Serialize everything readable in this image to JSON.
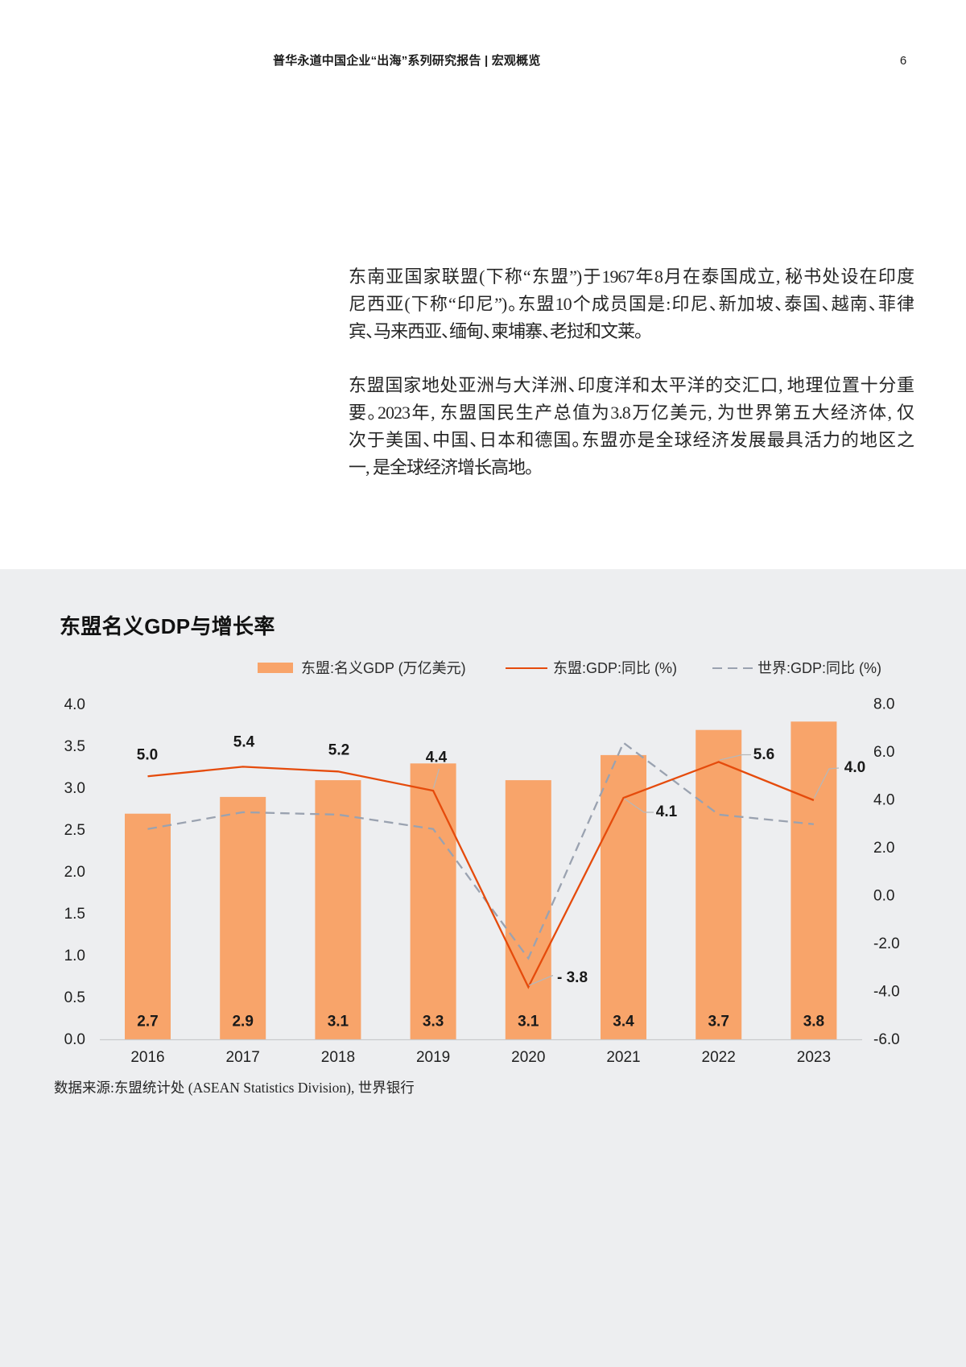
{
  "header": {
    "title": "普华永道中国企业“出海”系列研究报告  |  宏观概览",
    "page_number": "6"
  },
  "body": {
    "paragraphs": [
      {
        "lines": [
          "东南亚国家联盟(下称“东盟”)于1967年8月在泰国成立, 秘书处设在印度",
          "尼西亚(下称“印尼”)。东盟10个成员国是:印尼、新加坡、泰国、越南、菲律",
          "宾、马来西亚、缅甸、柬埔寨、老挝和文莱。"
        ]
      },
      {
        "lines": [
          "东盟国家地处亚洲与大洋洲、印度洋和太平洋的交汇口, 地理位置十分重",
          "要。2023年, 东盟国民生产总值为3.8万亿美元, 为世界第五大经济体, 仅",
          "次于美国、中国、日本和德国。东盟亦是全球经济发展最具活力的地区之",
          "一, 是全球经济增长高地。"
        ]
      }
    ]
  },
  "chart_data": {
    "type": "bar+line",
    "title": "东盟名义GDP与增长率",
    "categories": [
      "2016",
      "2017",
      "2018",
      "2019",
      "2020",
      "2021",
      "2022",
      "2023"
    ],
    "series": [
      {
        "name": "东盟:名义GDP (万亿美元)",
        "type": "bar",
        "axis": "left",
        "color": "#f8a46a",
        "values": [
          2.7,
          2.9,
          3.1,
          3.3,
          3.1,
          3.4,
          3.7,
          3.8
        ],
        "labels": [
          "2.7",
          "2.9",
          "3.1",
          "3.3",
          "3.1",
          "3.4",
          "3.7",
          "3.8"
        ]
      },
      {
        "name": "东盟:GDP:同比 (%)",
        "type": "line",
        "axis": "right",
        "color": "#e54b0c",
        "values": [
          5.0,
          5.4,
          5.2,
          4.4,
          -3.8,
          4.1,
          5.6,
          4.0
        ],
        "labels": [
          "5.0",
          "5.4",
          "5.2",
          "4.4",
          "- 3.8",
          "4.1",
          "5.6",
          "4.0"
        ]
      },
      {
        "name": "世界:GDP:同比 (%)",
        "type": "dashed-line",
        "axis": "right",
        "color": "#9aa2b0",
        "values": [
          2.8,
          3.5,
          3.4,
          2.8,
          -2.6,
          6.4,
          3.4,
          3.0
        ]
      }
    ],
    "left_axis": {
      "min": 0.0,
      "max": 4.0,
      "step": 0.5,
      "tick_labels": [
        "0.0",
        "0.5",
        "1.0",
        "1.5",
        "2.0",
        "2.5",
        "3.0",
        "3.5",
        "4.0"
      ]
    },
    "right_axis": {
      "min": -6.0,
      "max": 8.0,
      "step": 2.0,
      "tick_labels": [
        "-6.0",
        "-4.0",
        "-2.0",
        "0.0",
        "2.0",
        "4.0",
        "6.0",
        "8.0"
      ]
    },
    "grid": "off",
    "legend_position": "top",
    "source": "数据来源:东盟统计处 (ASEAN Statistics Division), 世界银行"
  }
}
